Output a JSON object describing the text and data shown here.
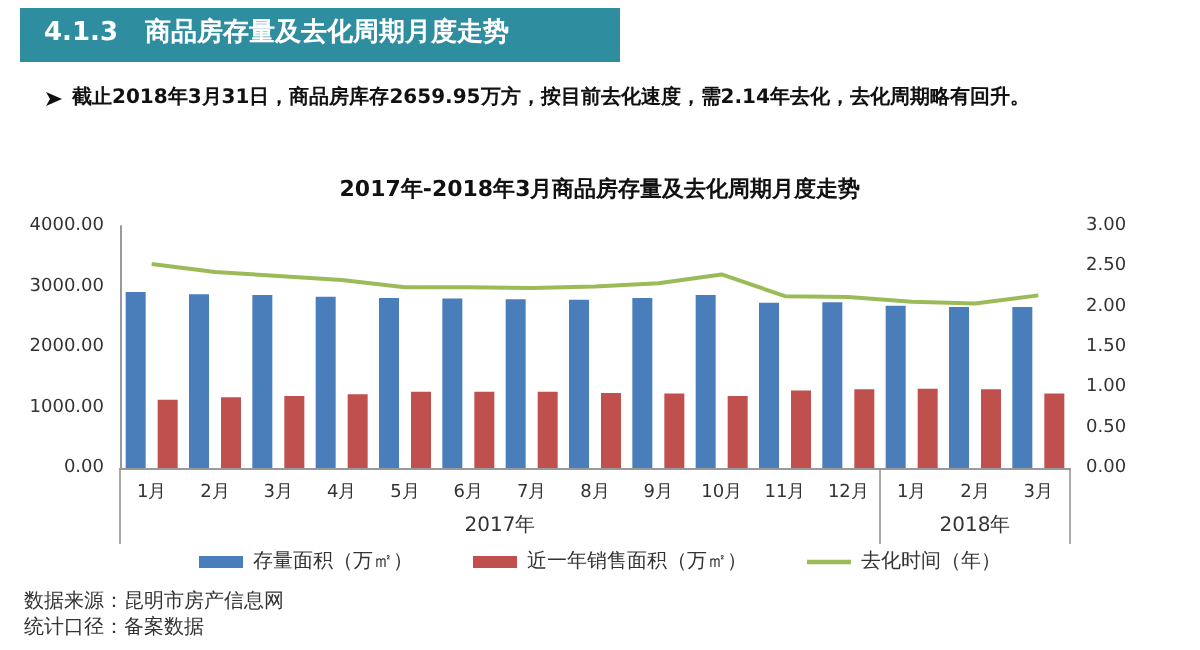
{
  "chart_data": {
    "type": "bar",
    "title": "4.1.3   商品房存量及去化周期月度走势",
    "subtitle": "截止2018年3月31日，商品房库存2659.95万方，按目前去化速度，需2.14年去化，去化周期略有回升。",
    "annotations": [
      "2017年-2018年3月商品房存量及去化周期月度走势",
      "2017年",
      "2018年",
      "数据来源：昆明市房产信息网",
      "统计口径：备案数据"
    ],
    "categories": [
      "1月",
      "2月",
      "3月",
      "4月",
      "5月",
      "6月",
      "7月",
      "8月",
      "9月",
      "10月",
      "11月",
      "12月",
      "1月",
      "2月",
      "3月"
    ],
    "series": [
      {
        "name": "存量面积（万㎡）",
        "color": "#4a7ebb",
        "values": [
          2910,
          2870,
          2860,
          2830,
          2810,
          2800,
          2790,
          2780,
          2810,
          2860,
          2730,
          2740,
          2680,
          2660,
          2660
        ]
      },
      {
        "name": "近一年销售面积（万㎡）",
        "color": "#c0504d",
        "values": [
          1130,
          1170,
          1190,
          1220,
          1260,
          1260,
          1260,
          1240,
          1230,
          1190,
          1280,
          1300,
          1310,
          1300,
          1230
        ]
      },
      {
        "name": "去化时间（年）",
        "type": "line",
        "axis": "y2",
        "color": "#9bbb59",
        "values": [
          2.53,
          2.43,
          2.38,
          2.33,
          2.24,
          2.24,
          2.23,
          2.25,
          2.29,
          2.4,
          2.13,
          2.12,
          2.06,
          2.04,
          2.14
        ]
      }
    ],
    "ylim": [
      0,
      4000
    ],
    "yticks": [
      {
        "value": 0,
        "label": "0.00"
      },
      {
        "value": 1000,
        "label": "1000.00"
      },
      {
        "value": 2000,
        "label": "2000.00"
      },
      {
        "value": 3000,
        "label": "3000.00"
      },
      {
        "value": 4000,
        "label": "4000.00"
      }
    ],
    "y2lim": [
      0,
      3
    ],
    "y2ticks": [
      {
        "value": 0,
        "label": "0.00"
      },
      {
        "value": 0.5,
        "label": "0.50"
      },
      {
        "value": 1,
        "label": "1.00"
      },
      {
        "value": 1.5,
        "label": "1.50"
      },
      {
        "value": 2,
        "label": "2.00"
      },
      {
        "value": 2.5,
        "label": "2.50"
      },
      {
        "value": 3,
        "label": "3.00"
      }
    ],
    "grid": false,
    "legend": "bottom",
    "marker": "none"
  }
}
